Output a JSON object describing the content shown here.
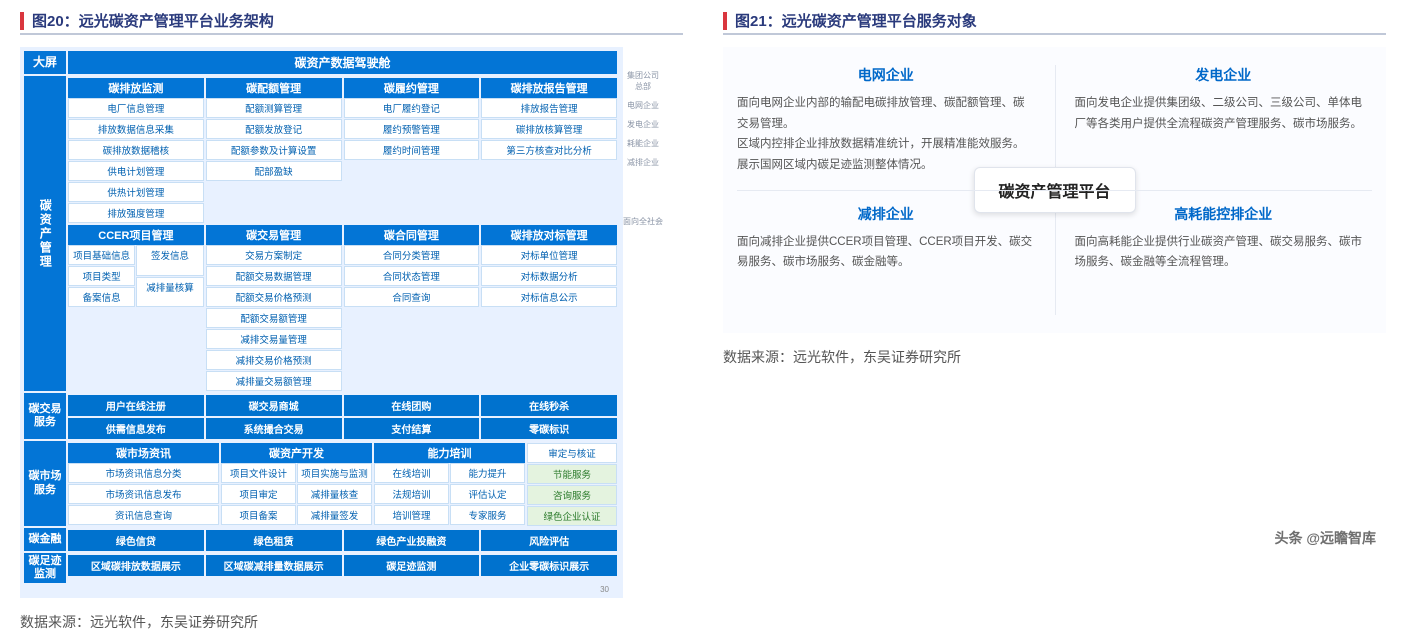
{
  "fig20": {
    "caption_prefix": "图20：",
    "caption": "远光碳资产管理平台业务架构",
    "source": "数据来源：远光软件，东吴证券研究所",
    "colors": {
      "panel_bg": "#e8f1ff",
      "header_bg": "#0375d6",
      "header_fg": "#ffffff",
      "cell_fg": "#0060b0",
      "border": "#c8dff5"
    },
    "side_labels": [
      "集团公司\n总部",
      "电网企业",
      "发电企业",
      "耗能企业",
      "减排企业",
      "面向全社会"
    ],
    "rows": {
      "dashboard": {
        "label": "大屏",
        "bar": "碳资产数据驾驶舱"
      },
      "asset": {
        "label": "碳资产管理",
        "groups_top": [
          {
            "head": "碳排放监测",
            "cols": [
              [
                "电厂信息管理",
                "排放数据信息采集",
                "碳排放数据稽核"
              ],
              [
                "供电计划管理",
                "供热计划管理",
                "排放强度管理"
              ]
            ]
          },
          {
            "head": "碳配额管理",
            "cols": [
              [
                "配额测算管理",
                "配额发放登记",
                "配额参数及计算设置",
                "配部盈缺"
              ]
            ]
          },
          {
            "head": "碳履约管理",
            "cols": [
              [
                "电厂履约登记",
                "履约预警管理",
                "履约时间管理"
              ]
            ]
          },
          {
            "head": "碳排放报告管理",
            "cols": [
              [
                "排放报告管理",
                "碳排放核算管理",
                "第三方核查对比分析"
              ]
            ]
          }
        ],
        "groups_bottom": [
          {
            "head": "CCER项目管理",
            "cols": [
              [
                "项目基础信息",
                "项目类型",
                "备案信息"
              ],
              [
                "签发信息",
                "减排量核算"
              ]
            ]
          },
          {
            "head": "碳交易管理",
            "cols": [
              [
                "交易方案制定",
                "配额交易数据管理",
                "配额交易价格预测",
                "配额交易额管理"
              ],
              [
                "减排交易量管理",
                "减排交易价格预测",
                "减排量交易额管理"
              ]
            ]
          },
          {
            "head": "碳合同管理",
            "cols": [
              [
                "合同分类管理",
                "合同状态管理",
                "合同查询"
              ]
            ]
          },
          {
            "head": "碳排放对标管理",
            "cols": [
              [
                "对标单位管理",
                "对标数据分析",
                "对标信息公示"
              ]
            ]
          }
        ]
      },
      "trade": {
        "label": "碳交易\n服务",
        "flats": [
          [
            "用户在线注册",
            "碳交易商城",
            "在线团购",
            "在线秒杀"
          ],
          [
            "供需信息发布",
            "系统撮合交易",
            "支付结算",
            "零碳标识"
          ]
        ]
      },
      "market": {
        "label": "碳市场\n服务",
        "top_heads": [
          "碳市场资讯",
          "碳资产开发",
          "能力培训"
        ],
        "top_cols": [
          [
            "市场资讯信息分类",
            "市场资讯信息发布",
            "资讯信息查询"
          ],
          [
            "项目文件设计",
            "项目审定",
            "项目备案",
            "项目实施与监测",
            "减排量核查",
            "减排量签发"
          ],
          [
            "在线培训",
            "法规培训",
            "培训管理",
            "能力提升",
            "评估认定",
            "专家服务"
          ]
        ],
        "right_items": [
          "审定与核证",
          "节能服务",
          "咨询服务",
          "绿色企业认证"
        ]
      },
      "finance": {
        "label": "碳金融",
        "flats": [
          [
            "绿色信贷",
            "绿色租赁",
            "绿色产业投融资",
            "风险评估"
          ]
        ]
      },
      "footprint": {
        "label": "碳足迹\n监测",
        "flats": [
          [
            "区域碳排放数据展示",
            "区域碳减排量数据展示",
            "碳足迹监测",
            "企业零碳标识展示"
          ]
        ]
      }
    },
    "page_tag": "30"
  },
  "fig21": {
    "caption_prefix": "图21：",
    "caption": "远光碳资产管理平台服务对象",
    "source": "数据来源：远光软件，东吴证券研究所",
    "center": "碳资产管理平台",
    "quads": [
      {
        "title": "电网企业",
        "body": "面向电网企业内部的输配电碳排放管理、碳配额管理、碳交易管理。\n区域内控排企业排放数据精准统计，开展精准能效服务。\n展示国网区域内碳足迹监测整体情况。"
      },
      {
        "title": "发电企业",
        "body": "面向发电企业提供集团级、二级公司、三级公司、单体电厂等各类用户提供全流程碳资产管理服务、碳市场服务。"
      },
      {
        "title": "减排企业",
        "body": "面向减排企业提供CCER项目管理、CCER项目开发、碳交易服务、碳市场服务、碳金融等。"
      },
      {
        "title": "高耗能控排企业",
        "body": "面向高耗能企业提供行业碳资产管理、碳交易服务、碳市场服务、碳金融等全流程管理。"
      }
    ],
    "colors": {
      "title_color": "#0068c9",
      "divider": "#e6eaf2"
    },
    "watermark_main": "头条 @远瞻智库",
    "watermark_sub": ""
  }
}
